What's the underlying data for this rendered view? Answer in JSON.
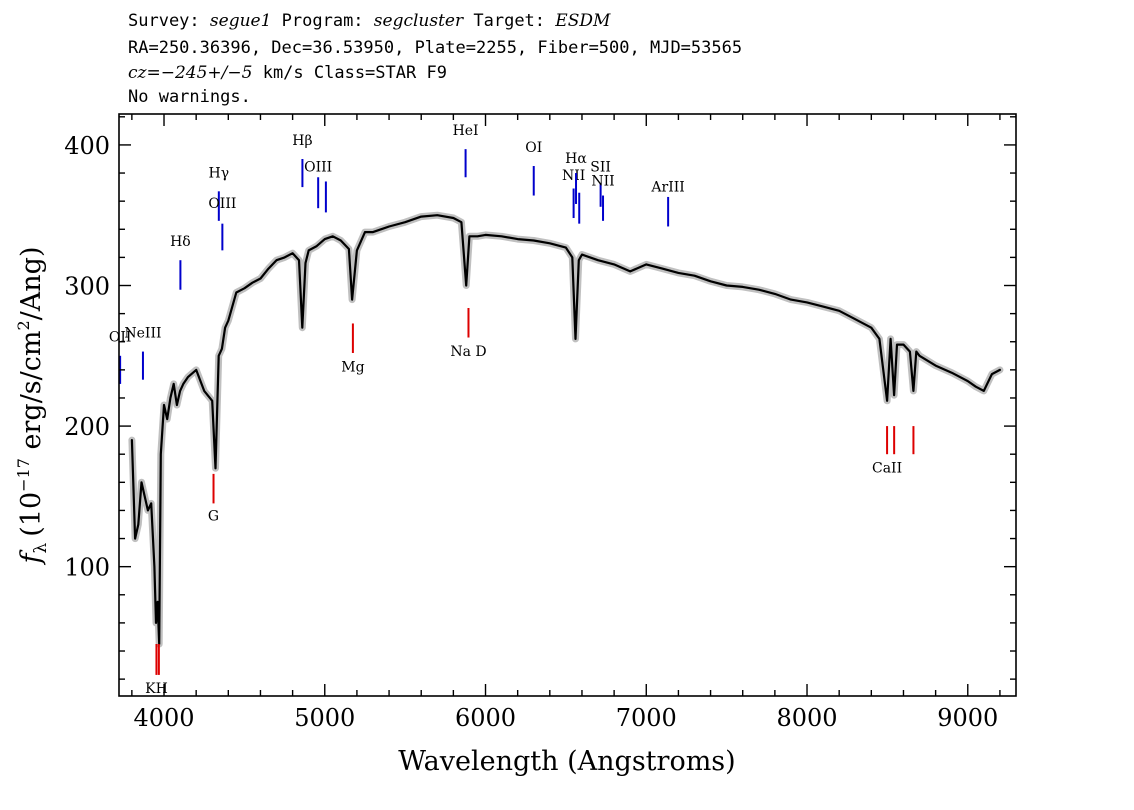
{
  "header": {
    "survey_label": "Survey:",
    "survey": "segue1",
    "program_label": "Program:",
    "program": "segcluster",
    "target_label": "Target:",
    "target": "ESDM",
    "line2": "RA=250.36396, Dec=36.53950, Plate=2255, Fiber=500, MJD=53565",
    "cz": "cz=−245+/−5",
    "cz_rest": "km/s Class=STAR F9",
    "line4": "No warnings."
  },
  "chart_data": {
    "type": "line",
    "title": "",
    "xlabel": "Wavelength (Angstroms)",
    "ylabel": "f_λ (10^-17 erg/s/cm^2/Ang)",
    "ylabel_parts": {
      "f": "f",
      "sub": "λ",
      "pre": "(10",
      "exp1": "−17",
      "mid": " erg/s/cm",
      "exp2": "2",
      "post": "/Ang)"
    },
    "xlim": [
      3720,
      9300
    ],
    "ylim": [
      8,
      422
    ],
    "xticks": [
      4000,
      5000,
      6000,
      7000,
      8000,
      9000
    ],
    "yticks": [
      100,
      200,
      300,
      400
    ],
    "xtick_labels": [
      "4000",
      "5000",
      "6000",
      "7000",
      "8000",
      "9000"
    ],
    "ytick_labels": [
      "100",
      "200",
      "300",
      "400"
    ],
    "series": [
      {
        "style": "black",
        "x": [
          3800,
          3820,
          3840,
          3860,
          3880,
          3900,
          3920,
          3940,
          3950,
          3960,
          3970,
          3980,
          4000,
          4020,
          4040,
          4060,
          4080,
          4100,
          4120,
          4150,
          4200,
          4250,
          4300,
          4320,
          4340,
          4360,
          4380,
          4400,
          4450,
          4500,
          4550,
          4600,
          4650,
          4700,
          4750,
          4800,
          4840,
          4860,
          4880,
          4900,
          4950,
          5000,
          5050,
          5100,
          5150,
          5170,
          5200,
          5250,
          5300,
          5400,
          5500,
          5600,
          5700,
          5800,
          5850,
          5880,
          5900,
          5950,
          6000,
          6100,
          6200,
          6300,
          6400,
          6500,
          6540,
          6560,
          6580,
          6600,
          6700,
          6800,
          6900,
          7000,
          7100,
          7200,
          7300,
          7400,
          7500,
          7600,
          7700,
          7800,
          7900,
          8000,
          8100,
          8200,
          8300,
          8400,
          8450,
          8498,
          8520,
          8542,
          8560,
          8600,
          8640,
          8662,
          8680,
          8700,
          8800,
          8900,
          9000,
          9050,
          9100,
          9150,
          9200
        ],
        "y": [
          190,
          120,
          130,
          160,
          150,
          140,
          145,
          100,
          60,
          75,
          45,
          180,
          215,
          205,
          220,
          230,
          215,
          225,
          230,
          235,
          240,
          225,
          218,
          170,
          250,
          255,
          270,
          275,
          295,
          298,
          302,
          305,
          312,
          318,
          320,
          323,
          318,
          270,
          316,
          325,
          328,
          333,
          335,
          332,
          326,
          290,
          325,
          338,
          338,
          342,
          345,
          349,
          350,
          348,
          345,
          300,
          335,
          335,
          336,
          335,
          333,
          332,
          330,
          327,
          320,
          262,
          318,
          322,
          318,
          315,
          310,
          315,
          312,
          309,
          307,
          303,
          300,
          299,
          297,
          294,
          290,
          288,
          285,
          282,
          276,
          270,
          262,
          218,
          262,
          222,
          258,
          258,
          253,
          225,
          253,
          250,
          243,
          238,
          232,
          228,
          225,
          237,
          240
        ]
      },
      {
        "style": "grey",
        "x": [
          3800,
          3820,
          3840,
          3860,
          3880,
          3900,
          3920,
          3940,
          3950,
          3960,
          3970,
          3980,
          4000,
          4020,
          4040,
          4060,
          4080,
          4100,
          4120,
          4150,
          4200,
          4250,
          4300,
          4320,
          4340,
          4360,
          4380,
          4400,
          4450,
          4500,
          4550,
          4600,
          4650,
          4700,
          4750,
          4800,
          4840,
          4860,
          4880,
          4900,
          4950,
          5000,
          5050,
          5100,
          5150,
          5170,
          5200,
          5250,
          5300,
          5400,
          5500,
          5600,
          5700,
          5800,
          5850,
          5880,
          5900,
          5950,
          6000,
          6100,
          6200,
          6300,
          6400,
          6500,
          6540,
          6560,
          6580,
          6600,
          6700,
          6800,
          6900,
          7000,
          7100,
          7200,
          7300,
          7400,
          7500,
          7600,
          7700,
          7800,
          7900,
          8000,
          8100,
          8200,
          8300,
          8400,
          8450,
          8498,
          8520,
          8542,
          8560,
          8600,
          8640,
          8662,
          8680,
          8700,
          8800,
          8900,
          9000,
          9050,
          9100,
          9150,
          9200
        ],
        "y": [
          190,
          120,
          130,
          160,
          150,
          140,
          145,
          100,
          60,
          75,
          45,
          180,
          215,
          205,
          220,
          230,
          215,
          225,
          230,
          235,
          240,
          225,
          218,
          170,
          250,
          255,
          270,
          275,
          295,
          298,
          302,
          305,
          312,
          318,
          320,
          323,
          318,
          270,
          316,
          325,
          328,
          333,
          335,
          332,
          326,
          290,
          325,
          338,
          338,
          342,
          345,
          349,
          350,
          348,
          345,
          300,
          335,
          335,
          336,
          335,
          333,
          332,
          330,
          327,
          320,
          262,
          318,
          322,
          318,
          315,
          310,
          315,
          312,
          309,
          307,
          303,
          300,
          299,
          297,
          294,
          290,
          288,
          285,
          282,
          276,
          270,
          262,
          218,
          262,
          222,
          258,
          258,
          253,
          225,
          253,
          250,
          243,
          238,
          232,
          228,
          225,
          237,
          240
        ]
      }
    ],
    "emission_lines": [
      {
        "label": "OII",
        "wave": 3727,
        "y1": 230,
        "y2": 250,
        "label_y": 260
      },
      {
        "label": "NeIII",
        "wave": 3869,
        "y1": 233,
        "y2": 253,
        "label_y": 263
      },
      {
        "label": "Hδ",
        "wave": 4102,
        "y1": 297,
        "y2": 318,
        "label_y": 328
      },
      {
        "label": "Hγ",
        "wave": 4341,
        "y1": 346,
        "y2": 367,
        "label_y": 377
      },
      {
        "label": "OIII",
        "wave": 4363,
        "y1": 325,
        "y2": 344,
        "label_y": 355
      },
      {
        "label": "Hβ",
        "wave": 4861,
        "y1": 370,
        "y2": 390,
        "label_y": 400
      },
      {
        "label": "OIII",
        "wave": 4959,
        "y1": 355,
        "y2": 377,
        "label_y": 381
      },
      {
        "label": "",
        "wave": 5007,
        "y1": 352,
        "y2": 374,
        "label_y": 0
      },
      {
        "label": "HeI",
        "wave": 5876,
        "y1": 377,
        "y2": 397,
        "label_y": 407
      },
      {
        "label": "OI",
        "wave": 6300,
        "y1": 364,
        "y2": 385,
        "label_y": 395
      },
      {
        "label": "NII",
        "wave": 6548,
        "y1": 348,
        "y2": 369,
        "label_y": 375
      },
      {
        "label": "Hα",
        "wave": 6563,
        "y1": 358,
        "y2": 380,
        "label_y": 387
      },
      {
        "label": "",
        "wave": 6583,
        "y1": 344,
        "y2": 366,
        "label_y": 0
      },
      {
        "label": "SII",
        "wave": 6716,
        "y1": 356,
        "y2": 373,
        "label_y": 381
      },
      {
        "label": "NII",
        "wave": 6731,
        "y1": 346,
        "y2": 364,
        "label_y": 371
      },
      {
        "label": "ArIII",
        "wave": 7136,
        "y1": 342,
        "y2": 363,
        "label_y": 367
      }
    ],
    "absorption_lines": [
      {
        "label": "KH",
        "wave": 3953,
        "y1": 23,
        "y2": 45,
        "label_y": 10
      },
      {
        "label": "",
        "wave": 3968,
        "y1": 23,
        "y2": 45,
        "label_y": 0
      },
      {
        "label": "G",
        "wave": 4308,
        "y1": 145,
        "y2": 166,
        "label_y": 133
      },
      {
        "label": "Mg",
        "wave": 5175,
        "y1": 252,
        "y2": 273,
        "label_y": 239
      },
      {
        "label": "Na D",
        "wave": 5894,
        "y1": 263,
        "y2": 284,
        "label_y": 250
      },
      {
        "label": "CaII",
        "wave": 8498,
        "y1": 180,
        "y2": 200,
        "label_y": 167
      },
      {
        "label": "",
        "wave": 8542,
        "y1": 180,
        "y2": 200,
        "label_y": 0
      },
      {
        "label": "",
        "wave": 8662,
        "y1": 180,
        "y2": 200,
        "label_y": 0
      }
    ],
    "colors": {
      "flux": "#000000",
      "smooth": "#c0c0c0",
      "emission": "#0000cc",
      "absorption": "#dd0000"
    }
  }
}
